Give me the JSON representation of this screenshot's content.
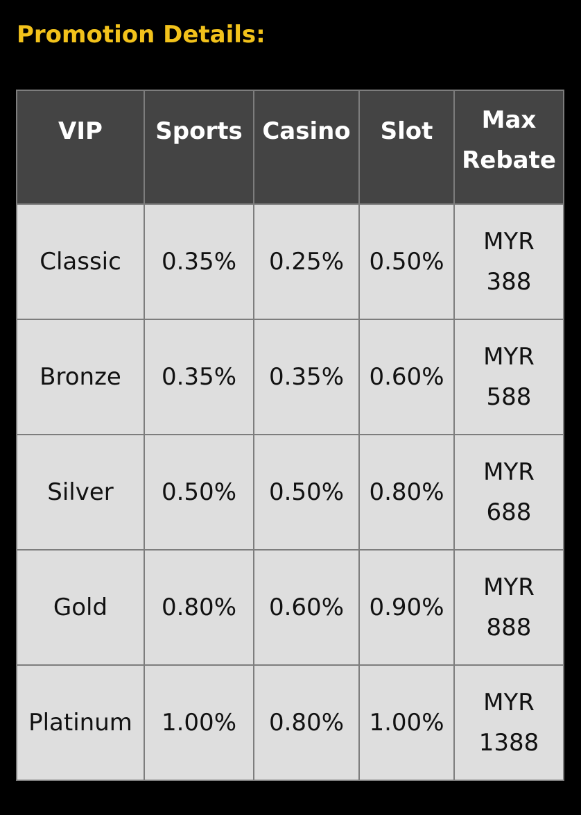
{
  "title": "Promotion Details:",
  "colors": {
    "title": "#f2c21b",
    "header_bg": "#444444",
    "cell_bg": "#dedede",
    "border": "#7d7d7d"
  },
  "table": {
    "headers": [
      "VIP",
      "Sports",
      "Casino",
      "Slot",
      "Max Rebate"
    ],
    "rows": [
      [
        "Classic",
        "0.35%",
        "0.25%",
        "0.50%",
        "MYR 388"
      ],
      [
        "Bronze",
        "0.35%",
        "0.35%",
        "0.60%",
        "MYR 588"
      ],
      [
        "Silver",
        "0.50%",
        "0.50%",
        "0.80%",
        "MYR 688"
      ],
      [
        "Gold",
        "0.80%",
        "0.60%",
        "0.90%",
        "MYR 888"
      ],
      [
        "Platinum",
        "1.00%",
        "0.80%",
        "1.00%",
        "MYR 1388"
      ]
    ]
  }
}
